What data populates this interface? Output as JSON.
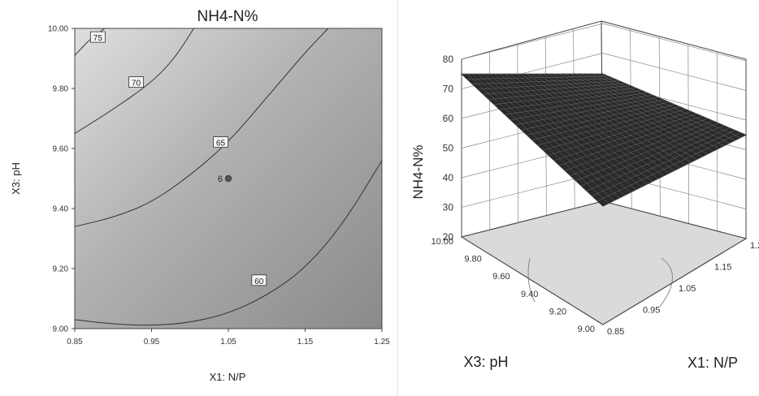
{
  "chart_data": [
    {
      "type": "contour",
      "title": "NH4-N%",
      "xlabel": "X1: N/P",
      "ylabel": "X3: pH",
      "xlim": [
        0.85,
        1.25
      ],
      "ylim": [
        9.0,
        10.0
      ],
      "x_ticks": [
        "0.85",
        "0.95",
        "1.05",
        "1.15",
        "1.25"
      ],
      "y_ticks": [
        "9.00",
        "9.20",
        "9.40",
        "9.60",
        "9.80",
        "10.00"
      ],
      "contours": [
        {
          "label": "75",
          "points": [
            [
              0.85,
              9.91
            ],
            [
              0.87,
              9.965
            ],
            [
              0.889,
              10.0
            ]
          ],
          "label_at": [
            0.88,
            9.97
          ]
        },
        {
          "label": "70",
          "points": [
            [
              0.85,
              9.65
            ],
            [
              0.9,
              9.73
            ],
            [
              0.95,
              9.82
            ],
            [
              0.98,
              9.9
            ],
            [
              1.005,
              10.0
            ]
          ],
          "label_at": [
            0.93,
            9.82
          ]
        },
        {
          "label": "65",
          "points": [
            [
              0.85,
              9.34
            ],
            [
              0.9,
              9.37
            ],
            [
              0.95,
              9.42
            ],
            [
              1.0,
              9.51
            ],
            [
              1.05,
              9.62
            ],
            [
              1.1,
              9.77
            ],
            [
              1.15,
              9.92
            ],
            [
              1.18,
              10.0
            ]
          ],
          "label_at": [
            1.04,
            9.62
          ]
        },
        {
          "label": "60",
          "points": [
            [
              0.85,
              9.03
            ],
            [
              0.9,
              9.015
            ],
            [
              0.95,
              9.01
            ],
            [
              1.0,
              9.02
            ],
            [
              1.05,
              9.05
            ],
            [
              1.1,
              9.11
            ],
            [
              1.15,
              9.2
            ],
            [
              1.2,
              9.35
            ],
            [
              1.25,
              9.56
            ]
          ],
          "label_at": [
            1.09,
            9.16
          ]
        }
      ],
      "design_point": {
        "x": 1.05,
        "y": 9.5,
        "label": "6"
      }
    },
    {
      "type": "surface3d",
      "zlabel": "NH4-N%",
      "xlabel": "X1: N/P",
      "ylabel": "X3: pH",
      "z_ticks": [
        "20",
        "30",
        "40",
        "50",
        "60",
        "70",
        "80"
      ],
      "x_ticks": [
        "0.85",
        "0.95",
        "1.05",
        "1.15",
        "1.2"
      ],
      "y_ticks": [
        "9.00",
        "9.20",
        "9.40",
        "9.60",
        "9.80",
        "10.00"
      ],
      "zlim": [
        20,
        80
      ],
      "surface_corners": [
        {
          "x": 0.85,
          "y": 10.0,
          "z": 75
        },
        {
          "x": 0.85,
          "y": 9.0,
          "z": 60
        },
        {
          "x": 1.25,
          "y": 10.0,
          "z": 63
        },
        {
          "x": 1.25,
          "y": 9.0,
          "z": 55
        }
      ]
    }
  ]
}
